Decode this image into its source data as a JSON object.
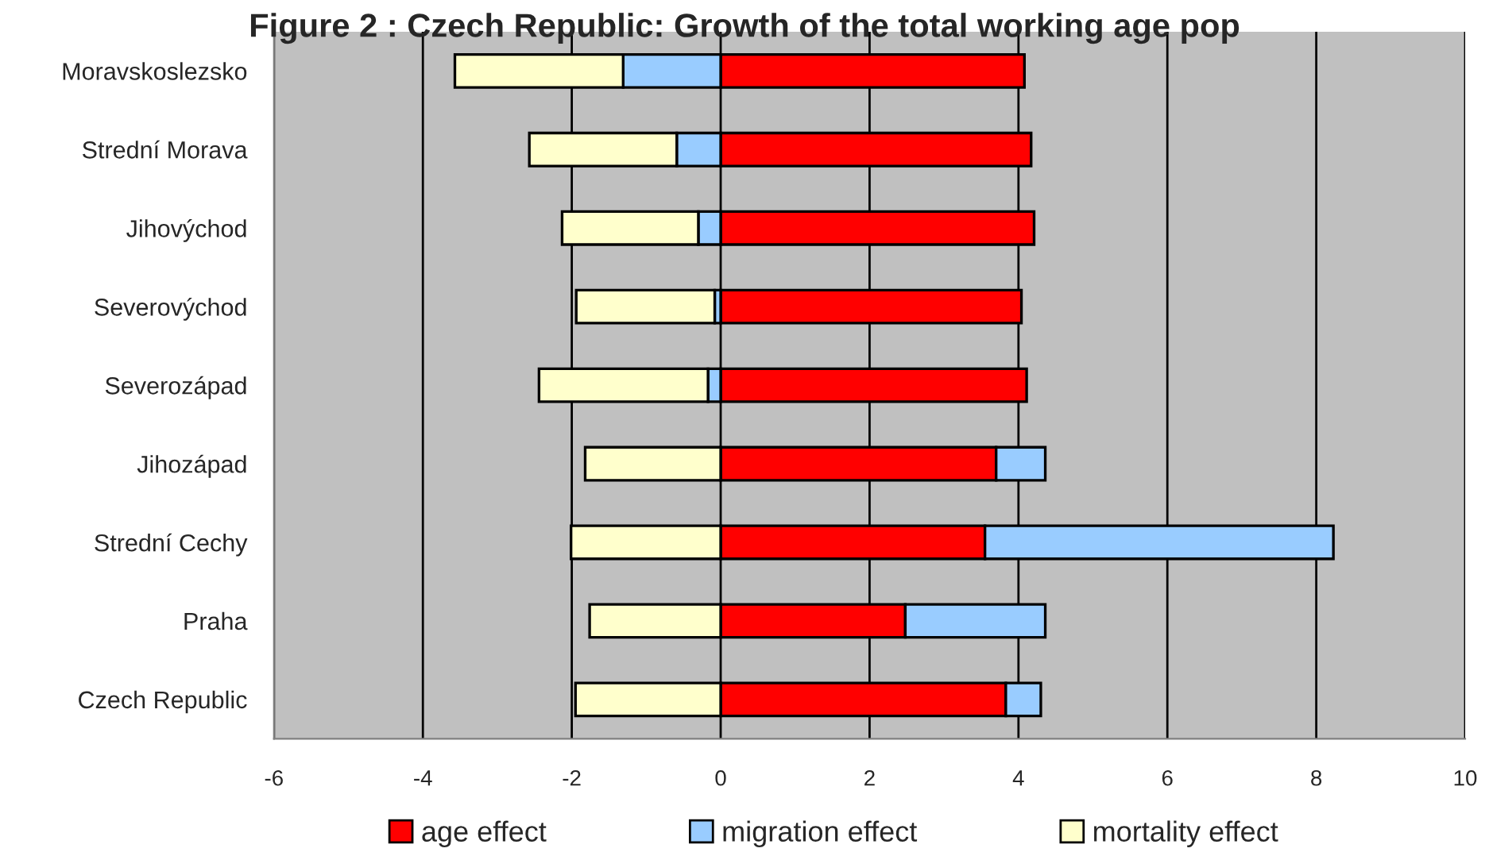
{
  "chart_data": {
    "type": "bar",
    "orientation": "horizontal",
    "stacked": true,
    "title": "Figure 2 : Czech Republic: Growth of the total working age pop",
    "categories": [
      "Moravskoslezsko",
      "Strední Morava",
      "Jihovýchod",
      "Severovýchod",
      "Severozápad",
      "Jihozápad",
      "Strední Cechy",
      "Praha",
      "Czech Republic"
    ],
    "series": [
      {
        "name": "age effect",
        "color": "#ff0000",
        "values": [
          4.08,
          4.17,
          4.21,
          4.04,
          4.11,
          3.7,
          3.55,
          2.48,
          3.83
        ]
      },
      {
        "name": "migration effect",
        "color": "#99ccff",
        "values": [
          -1.31,
          -0.59,
          -0.3,
          -0.08,
          -0.17,
          0.66,
          4.68,
          1.88,
          0.47
        ]
      },
      {
        "name": "mortality effect",
        "color": "#ffffcc",
        "values": [
          -2.26,
          -1.98,
          -1.83,
          -1.86,
          -2.27,
          -1.82,
          -2.01,
          -1.76,
          -1.95
        ]
      }
    ],
    "xlim": [
      -6,
      10
    ],
    "xticks": [
      -6,
      -4,
      -2,
      0,
      2,
      4,
      6,
      8,
      10
    ],
    "grid": "x",
    "legend": "bottom"
  }
}
